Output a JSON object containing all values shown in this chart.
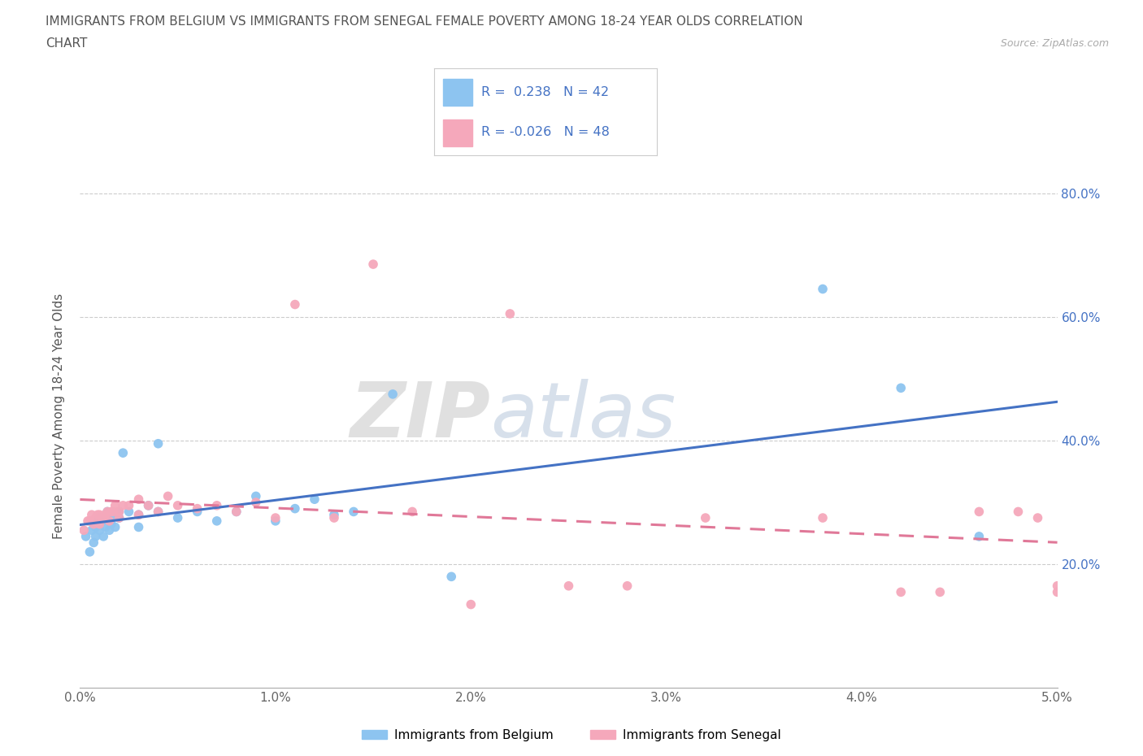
{
  "title_line1": "IMMIGRANTS FROM BELGIUM VS IMMIGRANTS FROM SENEGAL FEMALE POVERTY AMONG 18-24 YEAR OLDS CORRELATION",
  "title_line2": "CHART",
  "source": "Source: ZipAtlas.com",
  "ylabel": "Female Poverty Among 18-24 Year Olds",
  "xlim": [
    0.0,
    0.05
  ],
  "ylim": [
    0.0,
    0.88
  ],
  "xtick_labels": [
    "0.0%",
    "1.0%",
    "2.0%",
    "3.0%",
    "4.0%",
    "5.0%"
  ],
  "xtick_vals": [
    0.0,
    0.01,
    0.02,
    0.03,
    0.04,
    0.05
  ],
  "ytick_labels": [
    "20.0%",
    "40.0%",
    "60.0%",
    "80.0%"
  ],
  "ytick_vals": [
    0.2,
    0.4,
    0.6,
    0.8
  ],
  "watermark": "ZIPatlas",
  "belgium_color": "#8dc4f0",
  "senegal_color": "#f5a8bb",
  "belgium_line_color": "#4472c4",
  "senegal_line_color": "#e07898",
  "legend_R_belgium": "0.238",
  "legend_N_belgium": "42",
  "legend_R_senegal": "-0.026",
  "legend_N_senegal": "48",
  "legend_label_belgium": "Immigrants from Belgium",
  "legend_label_senegal": "Immigrants from Senegal",
  "belgium_x": [
    0.0003,
    0.0005,
    0.0006,
    0.0007,
    0.0008,
    0.0008,
    0.0009,
    0.001,
    0.001,
    0.0012,
    0.0013,
    0.0013,
    0.0014,
    0.0015,
    0.0015,
    0.0016,
    0.0017,
    0.0018,
    0.002,
    0.002,
    0.0022,
    0.0025,
    0.003,
    0.003,
    0.0035,
    0.004,
    0.004,
    0.005,
    0.006,
    0.007,
    0.008,
    0.009,
    0.01,
    0.011,
    0.012,
    0.013,
    0.014,
    0.016,
    0.019,
    0.038,
    0.042,
    0.046
  ],
  "belgium_y": [
    0.245,
    0.22,
    0.255,
    0.235,
    0.245,
    0.26,
    0.27,
    0.255,
    0.275,
    0.245,
    0.26,
    0.275,
    0.285,
    0.255,
    0.27,
    0.265,
    0.28,
    0.26,
    0.275,
    0.285,
    0.38,
    0.285,
    0.26,
    0.28,
    0.295,
    0.285,
    0.395,
    0.275,
    0.285,
    0.27,
    0.285,
    0.31,
    0.27,
    0.29,
    0.305,
    0.28,
    0.285,
    0.475,
    0.18,
    0.645,
    0.485,
    0.245
  ],
  "senegal_x": [
    0.0002,
    0.0004,
    0.0005,
    0.0006,
    0.0007,
    0.0008,
    0.0009,
    0.001,
    0.001,
    0.0012,
    0.0013,
    0.0014,
    0.0015,
    0.0016,
    0.0017,
    0.0018,
    0.002,
    0.002,
    0.0022,
    0.0025,
    0.003,
    0.003,
    0.0035,
    0.004,
    0.0045,
    0.005,
    0.006,
    0.007,
    0.008,
    0.009,
    0.01,
    0.011,
    0.013,
    0.015,
    0.017,
    0.02,
    0.022,
    0.025,
    0.028,
    0.032,
    0.038,
    0.042,
    0.044,
    0.046,
    0.048,
    0.049,
    0.05,
    0.05
  ],
  "senegal_y": [
    0.255,
    0.27,
    0.27,
    0.28,
    0.265,
    0.275,
    0.28,
    0.265,
    0.28,
    0.275,
    0.28,
    0.285,
    0.27,
    0.285,
    0.285,
    0.295,
    0.275,
    0.285,
    0.295,
    0.295,
    0.28,
    0.305,
    0.295,
    0.285,
    0.31,
    0.295,
    0.29,
    0.295,
    0.285,
    0.3,
    0.275,
    0.62,
    0.275,
    0.685,
    0.285,
    0.135,
    0.605,
    0.165,
    0.165,
    0.275,
    0.275,
    0.155,
    0.155,
    0.285,
    0.285,
    0.275,
    0.155,
    0.165
  ],
  "background_color": "#ffffff"
}
